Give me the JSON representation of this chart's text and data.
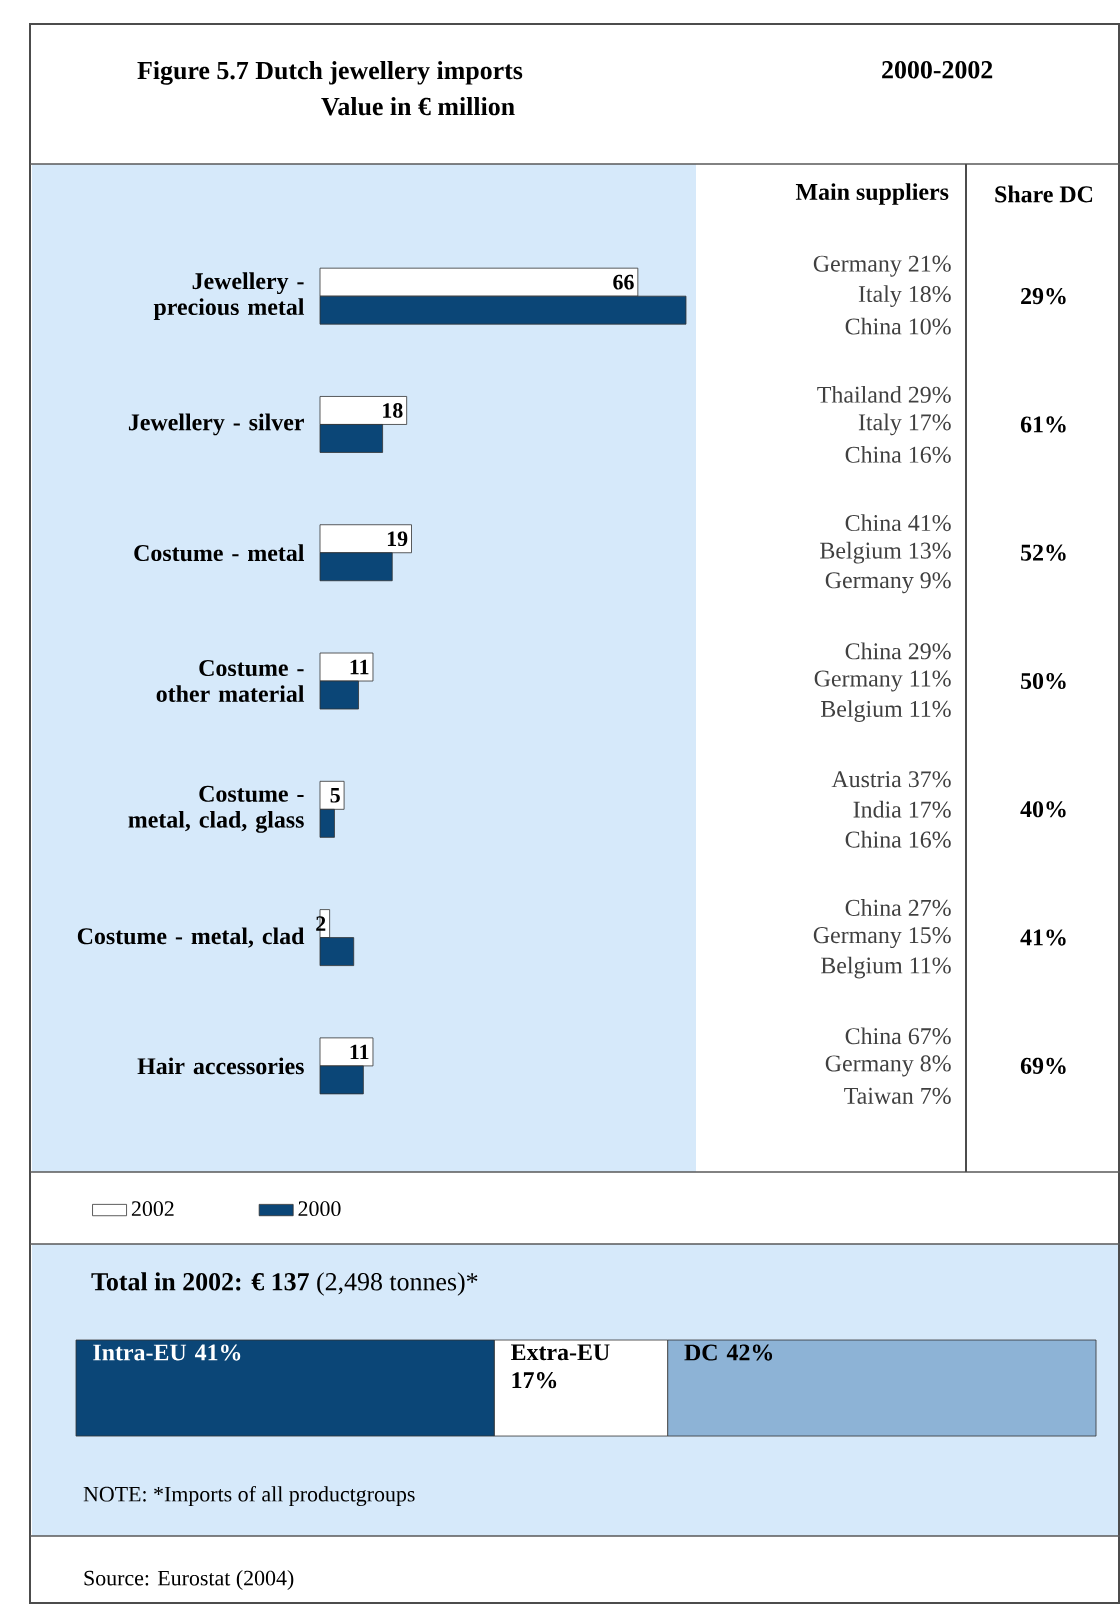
{
  "chart_data": [
    {
      "type": "bar",
      "orientation": "horizontal",
      "title": "Figure 5.7  Dutch jewellery imports",
      "subtitle": "Value in € million",
      "annotations": [
        "2000-2002"
      ],
      "categories": [
        "Jewellery - precious metal",
        "Jewellery - silver",
        "Costume - metal",
        "Costume - other material",
        "Costume - metal, clad, glass",
        "Costume - metal, clad",
        "Hair accessories"
      ],
      "series": [
        {
          "name": "2002",
          "color": "#ffffff",
          "values": [
            66,
            18,
            19,
            11,
            5,
            2,
            11
          ],
          "value_labels": [
            "66",
            "18",
            "19",
            "11",
            "5",
            "2",
            "11"
          ]
        },
        {
          "name": "2000",
          "color": "#0b4677",
          "values": [
            76,
            13,
            15,
            8,
            3,
            7,
            9
          ]
        }
      ],
      "legend": "bottom",
      "tick_labels": "y"
    },
    {
      "type": "other",
      "annotations": [
        "Main suppliers",
        "Share DC",
        "Germany 21%",
        "Italy 18%",
        "China 10%",
        "29%",
        "Thailand 29%",
        "Italy 17%",
        "China 16%",
        "61%",
        "China 41%",
        "Belgium 13%",
        "Germany 9%",
        "52%",
        "China 29%",
        "Germany 11%",
        "Belgium 11%",
        "50%",
        "Austria 37%",
        "India 17%",
        "China 16%",
        "40%",
        "China 27%",
        "Germany 15%",
        "Belgium 11%",
        "41%",
        "China 67%",
        "Germany 8%",
        "Taiwan 7%",
        "69%"
      ]
    },
    {
      "type": "bar",
      "orientation": "horizontal",
      "stacked": true,
      "title": "**Total in 2002: € 137** (2,498 tonnes)*",
      "categories": [
        null
      ],
      "tick_labels": false,
      "series": [
        {
          "name": "Intra-EU",
          "color": "#0b4677",
          "values": [
            41
          ],
          "value_labels": [
            "41%"
          ]
        },
        {
          "name": "Extra-EU",
          "color": "#ffffff",
          "values": [
            17
          ],
          "value_labels": [
            "17%"
          ]
        },
        {
          "name": "DC",
          "color": "#8db3d6",
          "values": [
            42
          ],
          "value_labels": [
            "42%"
          ]
        }
      ],
      "annotations": [
        "NOTE: *Imports of all productgroups",
        "Source: Eurostat (2004)"
      ]
    }
  ]
}
